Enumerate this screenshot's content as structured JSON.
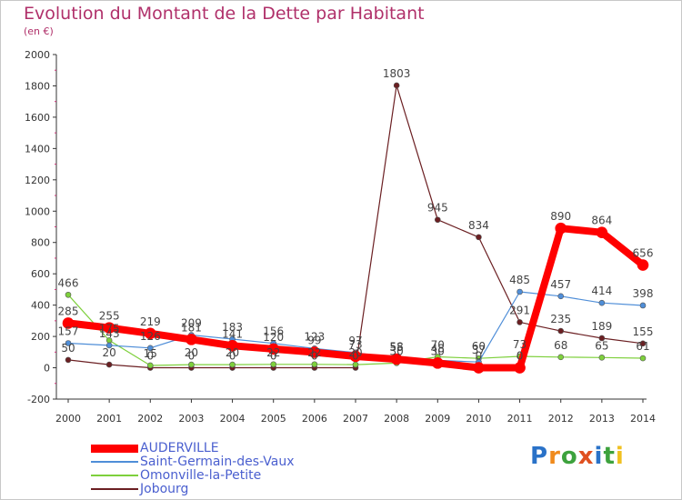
{
  "title": "Evolution du Montant de la Dette par Habitant",
  "subtitle": "(en €)",
  "logo": {
    "text": "Proxiti",
    "colors": [
      "#2a72c8",
      "#f08a1c",
      "#3da23d",
      "#e05020",
      "#2a72c8",
      "#3da23d",
      "#f0c020"
    ]
  },
  "chart_data": {
    "type": "line",
    "x": [
      "2000",
      "2001",
      "2002",
      "2003",
      "2004",
      "2005",
      "2006",
      "2007",
      "2008",
      "2009",
      "2010",
      "2011",
      "2012",
      "2013",
      "2014"
    ],
    "ylim": [
      -200,
      2000
    ],
    "yticks": [
      "-200",
      "0",
      "200",
      "400",
      "600",
      "800",
      "1000",
      "1200",
      "1400",
      "1600",
      "1800",
      "2000"
    ],
    "grid": false,
    "legend_position": "bottom-left",
    "series": [
      {
        "name": "Jobourg",
        "color": "#6b1f22",
        "width": 1.2,
        "values": [
          50,
          20,
          0,
          0,
          0,
          0,
          0,
          0,
          1803,
          945,
          834,
          291,
          235,
          189,
          155
        ],
        "labels": [
          "50",
          "20",
          "0",
          "0",
          "0",
          "0",
          "0",
          "0",
          "1803",
          "945",
          "834",
          "291",
          "235",
          "189",
          "155"
        ]
      },
      {
        "name": "Omonville-la-Petite",
        "color": "#7ed03c",
        "width": 1.2,
        "values": [
          466,
          175,
          15,
          20,
          20,
          22,
          22,
          20,
          30,
          70,
          60,
          73,
          68,
          65,
          61
        ],
        "labels": [
          "466",
          "175",
          "15",
          "20",
          "20",
          "22",
          "22",
          "20",
          "30",
          "70",
          "60",
          "73",
          "68",
          "65",
          "61"
        ]
      },
      {
        "name": "Saint-Germain-des-Vaux",
        "color": "#4f8ed8",
        "width": 1.2,
        "values": [
          157,
          143,
          126,
          209,
          183,
          156,
          123,
          97,
          58,
          48,
          37,
          485,
          457,
          414,
          398
        ],
        "labels": [
          "157",
          "143",
          "126",
          "209",
          "183",
          "156",
          "123",
          "97",
          "58",
          "48",
          "37",
          "485",
          "457",
          "414",
          "398"
        ]
      },
      {
        "name": "AUDERVILLE",
        "color": "#ff0000",
        "width": 8,
        "values": [
          285,
          255,
          219,
          181,
          141,
          120,
          99,
          73,
          55,
          30,
          0,
          0,
          890,
          864,
          656
        ],
        "labels": [
          "285",
          "255",
          "219",
          "181",
          "141",
          "120",
          "99",
          "73",
          "55",
          "30",
          "0",
          "0",
          "890",
          "864",
          "656"
        ]
      }
    ]
  }
}
